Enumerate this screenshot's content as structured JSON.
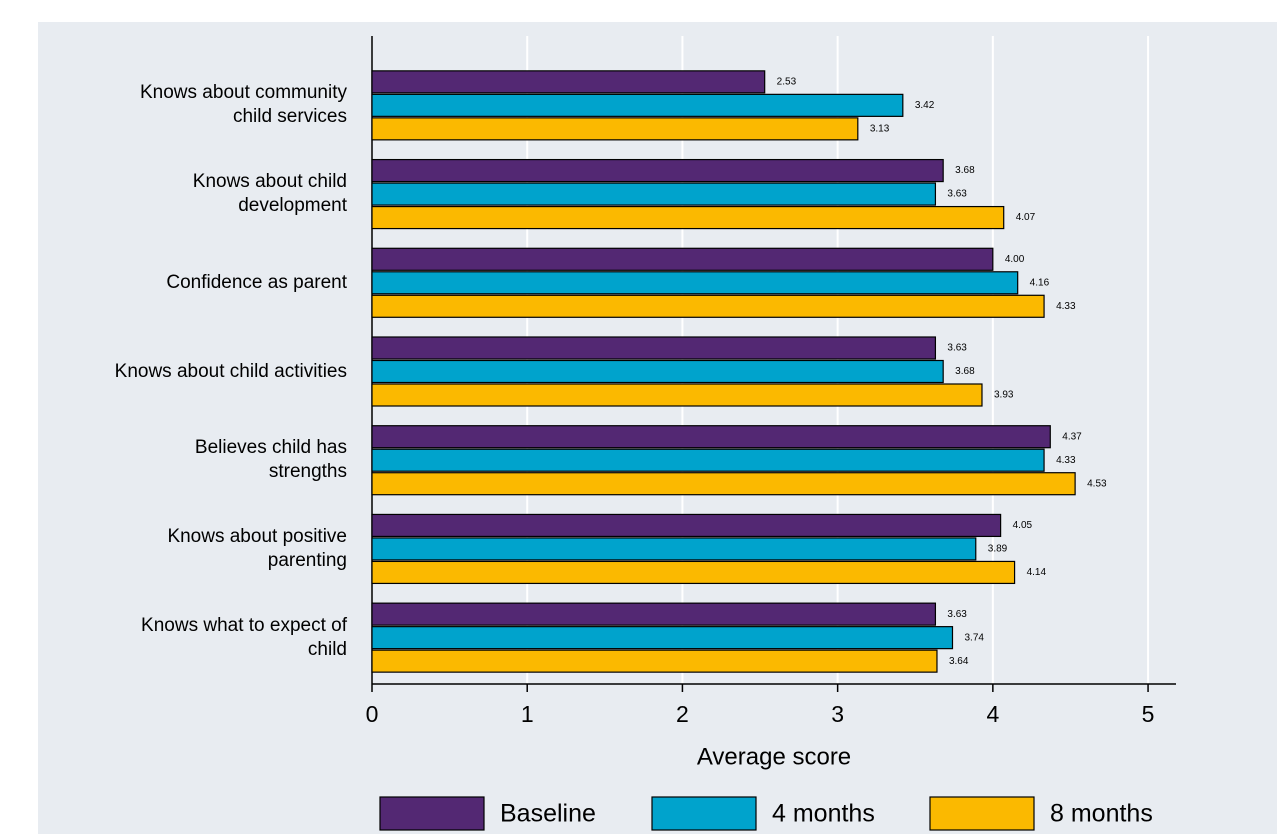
{
  "chart_data": {
    "type": "hbar",
    "x_label": "Average score",
    "categories": [
      "Knows about community\nchild services",
      "Knows about child\ndevelopment",
      "Confidence as parent",
      "Knows about child activities",
      "Believes child has\nstrengths",
      "Knows about positive\nparenting",
      "Knows what to expect of\nchild"
    ],
    "series": [
      {
        "name": "Baseline",
        "color": "#532873",
        "values": [
          2.53,
          3.68,
          4,
          3.63,
          4.37,
          4.05,
          3.63
        ],
        "value_labels": [
          "2.53",
          "3.68",
          "4.00",
          "3.63",
          "4.37",
          "4.05",
          "3.63"
        ]
      },
      {
        "name": "4 months",
        "color": "#00a3cc",
        "values": [
          3.42,
          3.63,
          4.16,
          3.68,
          4.33,
          3.89,
          3.74
        ],
        "value_labels": [
          "3.42",
          "3.63",
          "4.16",
          "3.68",
          "4.33",
          "3.89",
          "3.74"
        ]
      },
      {
        "name": "8 months",
        "color": "#fbb900",
        "values": [
          3.13,
          4.07,
          4.33,
          3.93,
          4.53,
          4.14,
          3.64
        ],
        "value_labels": [
          "3.13",
          "4.07",
          "4.33",
          "3.93",
          "4.53",
          "4.14",
          "3.64"
        ]
      }
    ],
    "xlim": [
      0,
      5.18
    ],
    "xticks": [
      0,
      1,
      2,
      3,
      4,
      5
    ],
    "grid": true
  }
}
